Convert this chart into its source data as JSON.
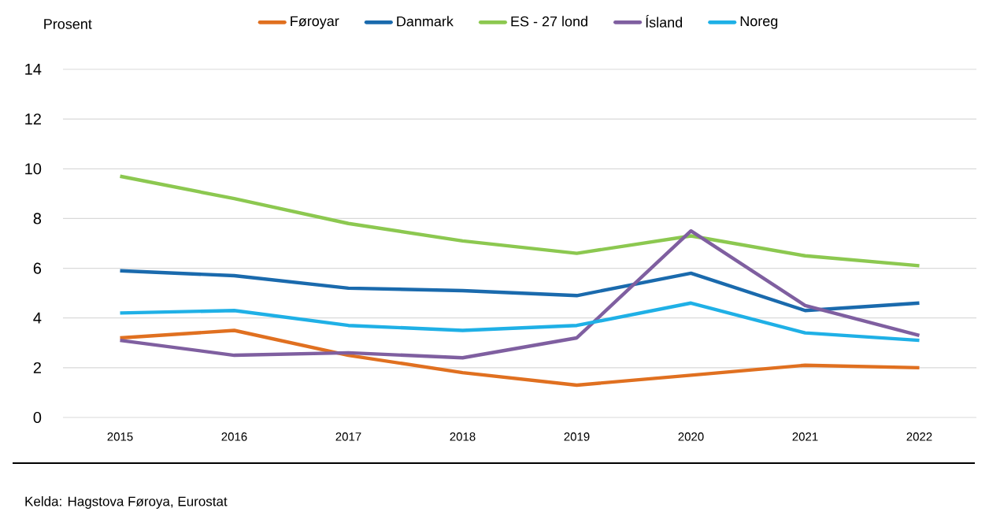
{
  "chart_data": {
    "type": "line",
    "ylabel": "Prosent",
    "categories": [
      "2015",
      "2016",
      "2017",
      "2018",
      "2019",
      "2020",
      "2021",
      "2022"
    ],
    "series": [
      {
        "name": "Føroyar",
        "color": "#e07020",
        "values": [
          3.2,
          3.5,
          2.5,
          1.8,
          1.3,
          1.7,
          2.1,
          2.0
        ]
      },
      {
        "name": "Danmark",
        "color": "#1a6aad",
        "values": [
          5.9,
          5.7,
          5.2,
          5.1,
          4.9,
          5.8,
          4.3,
          4.6
        ]
      },
      {
        "name": "ES - 27 lond",
        "color": "#8cc850",
        "values": [
          9.7,
          8.8,
          7.8,
          7.1,
          6.6,
          7.3,
          6.5,
          6.1
        ]
      },
      {
        "name": "Ísland",
        "color": "#7f5fa0",
        "values": [
          3.1,
          2.5,
          2.6,
          2.4,
          3.2,
          7.5,
          4.5,
          3.3
        ]
      },
      {
        "name": "Noreg",
        "color": "#1fb0e6",
        "values": [
          4.2,
          4.3,
          3.7,
          3.5,
          3.7,
          4.6,
          3.4,
          3.1
        ]
      }
    ],
    "ylim": [
      0,
      14
    ],
    "yticks": [
      0,
      2,
      4,
      6,
      8,
      10,
      12,
      14
    ],
    "grid": "y",
    "legend": "top",
    "line_style": "solid",
    "annotations": [
      "Kelda: Hagstova Føroya, Eurostat"
    ]
  }
}
